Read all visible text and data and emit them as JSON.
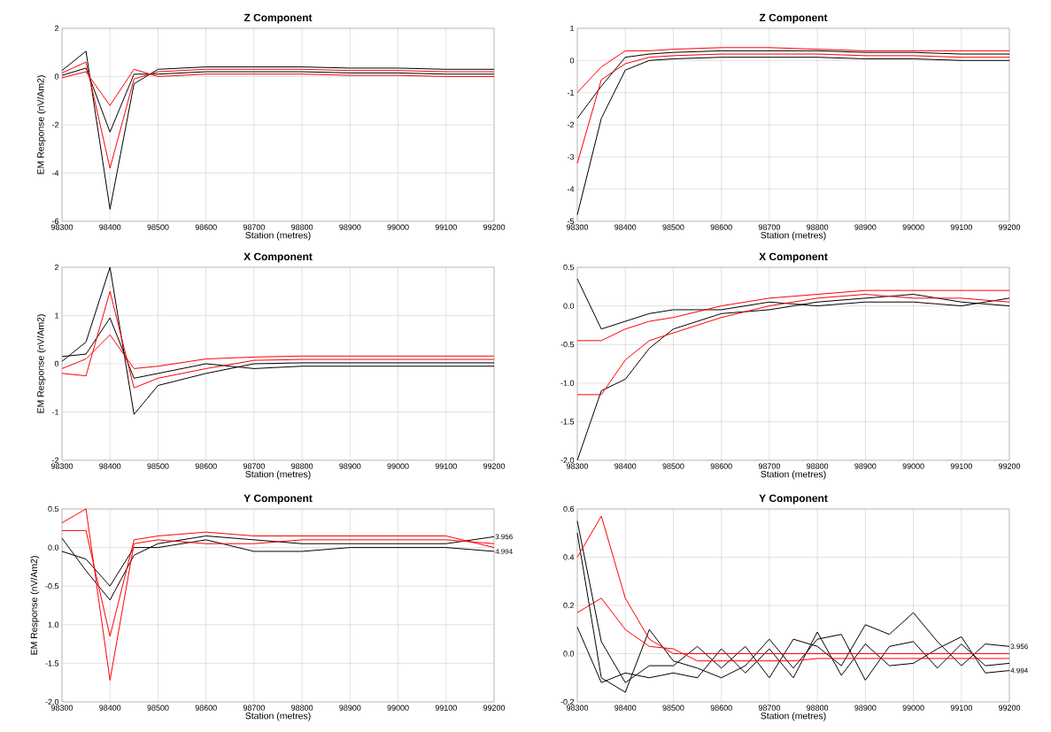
{
  "chart_data": [
    {
      "type": "line",
      "title": "Z Component",
      "xlabel": "Station (metres)",
      "ylabel": "EM Response (nV/Am2)",
      "grid": true,
      "x": [
        98300,
        98350,
        98400,
        98450,
        98500,
        98600,
        98700,
        98800,
        98900,
        99000,
        99100,
        99200
      ],
      "xlim": [
        98300,
        99200
      ],
      "xticks": [
        98300,
        98400,
        98500,
        98600,
        98700,
        98800,
        98900,
        99000,
        99100,
        99200
      ],
      "ylim": [
        -6,
        2
      ],
      "yticks": [
        -6,
        -4,
        -2,
        0,
        2
      ],
      "series": [
        {
          "color": "#000000",
          "values": [
            0.25,
            1.05,
            -5.5,
            -0.3,
            0.3,
            0.4,
            0.4,
            0.4,
            0.35,
            0.35,
            0.3,
            0.3
          ]
        },
        {
          "color": "#000000",
          "values": [
            0.05,
            0.35,
            -2.3,
            0.1,
            0.1,
            0.2,
            0.2,
            0.2,
            0.15,
            0.15,
            0.1,
            0.1
          ]
        },
        {
          "color": "#ff0000",
          "values": [
            0.15,
            0.6,
            -3.8,
            -0.1,
            0.2,
            0.3,
            0.3,
            0.3,
            0.25,
            0.25,
            0.2,
            0.2
          ]
        },
        {
          "color": "#ff0000",
          "values": [
            -0.05,
            0.2,
            -1.2,
            0.3,
            0,
            0.1,
            0.1,
            0.1,
            0.05,
            0.05,
            0,
            0
          ]
        }
      ]
    },
    {
      "type": "line",
      "title": "Z Component",
      "xlabel": "Station (metres)",
      "grid": true,
      "x": [
        98300,
        98350,
        98400,
        98450,
        98500,
        98600,
        98700,
        98800,
        98900,
        99000,
        99100,
        99200
      ],
      "xlim": [
        98300,
        99200
      ],
      "xticks": [
        98300,
        98400,
        98500,
        98600,
        98700,
        98800,
        98900,
        99000,
        99100,
        99200
      ],
      "ylim": [
        -5,
        1
      ],
      "yticks": [
        -5,
        -4,
        -3,
        -2,
        -1,
        0,
        1
      ],
      "series": [
        {
          "color": "#000000",
          "values": [
            -4.8,
            -1.8,
            -0.3,
            0,
            0.05,
            0.1,
            0.1,
            0.1,
            0.05,
            0.05,
            0,
            0
          ]
        },
        {
          "color": "#000000",
          "values": [
            -1.8,
            -0.8,
            0.1,
            0.2,
            0.25,
            0.3,
            0.3,
            0.3,
            0.25,
            0.25,
            0.2,
            0.2
          ]
        },
        {
          "color": "#ff0000",
          "values": [
            -3.2,
            -0.6,
            -0.1,
            0.1,
            0.15,
            0.2,
            0.2,
            0.2,
            0.15,
            0.15,
            0.1,
            0.1
          ]
        },
        {
          "color": "#ff0000",
          "values": [
            -1.0,
            -0.2,
            0.3,
            0.3,
            0.35,
            0.4,
            0.4,
            0.35,
            0.3,
            0.3,
            0.3,
            0.3
          ]
        }
      ]
    },
    {
      "type": "line",
      "title": "X Component",
      "xlabel": "Station (metres)",
      "ylabel": "EM Response (nV/Am2)",
      "grid": true,
      "x": [
        98300,
        98350,
        98400,
        98450,
        98500,
        98600,
        98700,
        98800,
        98900,
        99000,
        99100,
        99200
      ],
      "xlim": [
        98300,
        99200
      ],
      "xticks": [
        98300,
        98400,
        98500,
        98600,
        98700,
        98800,
        98900,
        99000,
        99100,
        99200
      ],
      "ylim": [
        -2,
        2
      ],
      "yticks": [
        -2,
        -1,
        0,
        1,
        2
      ],
      "series": [
        {
          "color": "#000000",
          "values": [
            0.05,
            0.45,
            2.0,
            -1.05,
            -0.45,
            -0.2,
            0,
            0.02,
            0.02,
            0.02,
            0.02,
            0.02
          ]
        },
        {
          "color": "#000000",
          "values": [
            0.15,
            0.2,
            0.95,
            -0.3,
            -0.2,
            0,
            -0.1,
            -0.05,
            -0.05,
            -0.05,
            -0.05,
            -0.05
          ]
        },
        {
          "color": "#ff0000",
          "values": [
            -0.2,
            -0.25,
            1.5,
            -0.5,
            -0.3,
            -0.1,
            0.07,
            0.09,
            0.09,
            0.09,
            0.09,
            0.09
          ]
        },
        {
          "color": "#ff0000",
          "values": [
            -0.1,
            0.1,
            0.6,
            -0.1,
            -0.05,
            0.1,
            0.14,
            0.16,
            0.16,
            0.16,
            0.16,
            0.16
          ]
        }
      ]
    },
    {
      "type": "line",
      "title": "X Component",
      "xlabel": "Station (metres)",
      "grid": true,
      "x": [
        98300,
        98350,
        98400,
        98450,
        98500,
        98600,
        98700,
        98800,
        98900,
        99000,
        99100,
        99200
      ],
      "xlim": [
        98300,
        99200
      ],
      "xticks": [
        98300,
        98400,
        98500,
        98600,
        98700,
        98800,
        98900,
        99000,
        99100,
        99200
      ],
      "ylim": [
        -2,
        0.5
      ],
      "yticks": [
        0.5,
        {
          "value": 0,
          "label": "0.0"
        },
        -0.5,
        {
          "value": -1,
          "label": "-1.0"
        },
        -1.5,
        {
          "value": -2,
          "label": "-2.0"
        }
      ],
      "series": [
        {
          "color": "#000000",
          "values": [
            -2.0,
            -1.1,
            -0.95,
            -0.55,
            -0.3,
            -0.1,
            -0.05,
            0.05,
            0.1,
            0.15,
            0.05,
            0
          ]
        },
        {
          "color": "#000000",
          "values": [
            0.35,
            -0.3,
            -0.2,
            -0.1,
            -0.05,
            -0.05,
            0.05,
            0,
            0.05,
            0.05,
            0,
            0.1
          ]
        },
        {
          "color": "#ff0000",
          "values": [
            -1.15,
            -1.15,
            -0.7,
            -0.45,
            -0.35,
            -0.15,
            0,
            0.1,
            0.15,
            0.1,
            0.1,
            0.05
          ]
        },
        {
          "color": "#ff0000",
          "values": [
            -0.45,
            -0.45,
            -0.3,
            -0.2,
            -0.15,
            0,
            0.1,
            0.15,
            0.2,
            0.2,
            0.2,
            0.2
          ]
        }
      ]
    },
    {
      "type": "line",
      "title": "Y Component",
      "xlabel": "Station (metres)",
      "ylabel": "EM Response (nV/Am2)",
      "grid": true,
      "x": [
        98300,
        98350,
        98400,
        98450,
        98500,
        98600,
        98700,
        98800,
        98900,
        99000,
        99100,
        99200
      ],
      "xlim": [
        98300,
        99200
      ],
      "xticks": [
        98300,
        98400,
        98500,
        98600,
        98700,
        98800,
        98900,
        99000,
        99100,
        99200
      ],
      "ylim": [
        -2,
        0.5
      ],
      "yticks": [
        0.5,
        {
          "value": 0,
          "label": "0.0"
        },
        -0.5,
        {
          "value": -1,
          "label": "1.0"
        },
        -1.5,
        {
          "value": -2,
          "label": "-2.0"
        }
      ],
      "series": [
        {
          "name": "3.956",
          "color": "#000000",
          "values": [
            0.12,
            -0.3,
            -0.68,
            -0.1,
            0.05,
            0.15,
            0.1,
            0.05,
            0.05,
            0.05,
            0.05,
            0.14
          ]
        },
        {
          "name": "4.994",
          "color": "#000000",
          "values": [
            -0.05,
            -0.15,
            -0.5,
            0,
            0,
            0.1,
            -0.05,
            -0.05,
            0,
            0,
            0,
            -0.05
          ]
        },
        {
          "color": "#ff0000",
          "values": [
            0.32,
            0.5,
            -1.72,
            0.05,
            0.1,
            0.05,
            0.05,
            0.1,
            0.1,
            0.1,
            0.1,
            0.05
          ]
        },
        {
          "color": "#ff0000",
          "values": [
            0.22,
            0.22,
            -1.15,
            0.1,
            0.15,
            0.2,
            0.15,
            0.15,
            0.15,
            0.15,
            0.15,
            0
          ]
        }
      ]
    },
    {
      "type": "line",
      "title": "Y Component",
      "xlabel": "Station (metres)",
      "grid": true,
      "x": [
        98300,
        98350,
        98400,
        98450,
        98500,
        98550,
        98600,
        98650,
        98700,
        98750,
        98800,
        98850,
        98900,
        98950,
        99000,
        99050,
        99100,
        99150,
        99200
      ],
      "xlim": [
        98300,
        99200
      ],
      "xticks": [
        98300,
        98400,
        98500,
        98600,
        98700,
        98800,
        98900,
        99000,
        99100,
        99200
      ],
      "ylim": [
        -0.2,
        0.6
      ],
      "yticks": [
        -0.2,
        {
          "value": 0,
          "label": "0.0"
        },
        0.2,
        0.4,
        0.6
      ],
      "series": [
        {
          "name": "3.956",
          "color": "#000000",
          "values": [
            0.55,
            0.05,
            -0.12,
            -0.05,
            -0.05,
            0.03,
            -0.06,
            0.03,
            -0.1,
            0.06,
            0.03,
            -0.05,
            0.12,
            0.08,
            0.17,
            0.05,
            -0.05,
            0.04,
            0.03
          ]
        },
        {
          "color": "#000000",
          "values": [
            0.5,
            -0.1,
            -0.16,
            0.1,
            -0.03,
            -0.06,
            -0.1,
            -0.05,
            0.06,
            -0.06,
            0.06,
            0.08,
            -0.11,
            0.03,
            0.05,
            -0.06,
            0.04,
            -0.05,
            -0.04
          ]
        },
        {
          "name": "4.994",
          "color": "#000000",
          "values": [
            0.11,
            -0.12,
            -0.08,
            -0.1,
            -0.08,
            -0.1,
            0.02,
            -0.08,
            0.02,
            -0.1,
            0.09,
            -0.09,
            0.04,
            -0.05,
            -0.04,
            0.02,
            0.07,
            -0.08,
            -0.07
          ]
        },
        {
          "color": "#ff0000",
          "values": [
            0.4,
            0.57,
            0.23,
            0.06,
            0,
            0,
            0,
            0,
            0,
            0,
            0,
            0,
            0,
            0,
            0,
            0,
            0,
            0,
            0
          ]
        },
        {
          "color": "#ff0000",
          "values": [
            0.17,
            0.23,
            0.1,
            0.03,
            0.02,
            -0.03,
            -0.03,
            -0.03,
            -0.03,
            -0.03,
            -0.02,
            -0.02,
            -0.02,
            -0.02,
            -0.02,
            -0.02,
            -0.02,
            -0.02,
            -0.02
          ]
        }
      ]
    }
  ]
}
